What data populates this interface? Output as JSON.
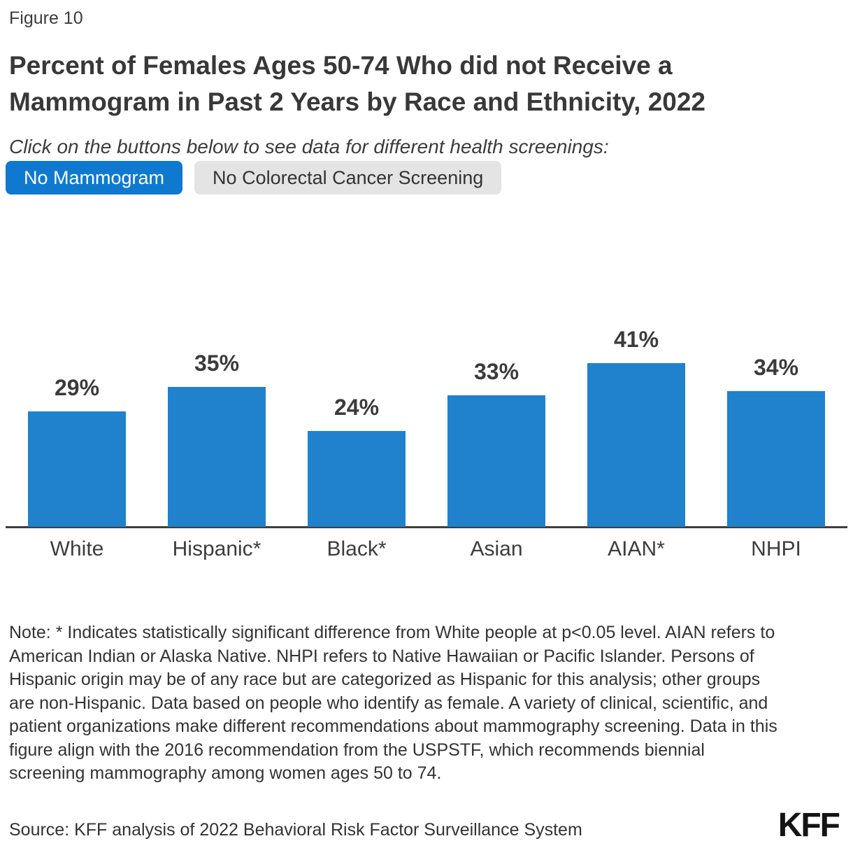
{
  "figure_label": "Figure 10",
  "header": {
    "title": "Percent of Females Ages 50-74 Who did not Receive a Mammogram in Past 2 Years by Race and Ethnicity, 2022",
    "subtitle": "Click on the buttons below to see data for different health screenings:"
  },
  "buttons": [
    {
      "label": "No Mammogram",
      "active": true
    },
    {
      "label": "No Colorectal Cancer Screening",
      "active": false
    }
  ],
  "chart_data": {
    "type": "bar",
    "title": "Percent of Females Ages 50-74 Who did not Receive a Mammogram in Past 2 Years by Race and Ethnicity, 2022",
    "categories": [
      "White",
      "Hispanic*",
      "Black*",
      "Asian",
      "AIAN*",
      "NHPI"
    ],
    "values": [
      29,
      35,
      24,
      33,
      41,
      34
    ],
    "value_labels": [
      "29%",
      "35%",
      "24%",
      "33%",
      "41%",
      "34%"
    ],
    "xlabel": "",
    "ylabel": "",
    "ylim": [
      0,
      45
    ],
    "y_axis_visible": false,
    "gridlines": false,
    "legend": "none",
    "bar_color": "#2081cd"
  },
  "note": "Note: * Indicates statistically significant difference from White people at p<0.05 level. AIAN refers to American Indian or Alaska Native. NHPI refers to Native Hawaiian or Pacific Islander. Persons of Hispanic origin may be of any race but are categorized as Hispanic for this analysis; other groups are non-Hispanic. Data based on people who identify as female. A variety of clinical, scientific, and patient organizations make different recommendations about mammography screening. Data in this figure align with the 2016 recommendation from the USPSTF, which recommends biennial screening mammography among women ages 50 to 74.",
  "source": "Source: KFF analysis of 2022 Behavioral Risk Factor Surveillance System",
  "logo": "KFF",
  "colors": {
    "bar_blue": "#2081cd",
    "active_button_blue": "#0f79d0",
    "inactive_button_gray": "#e4e4e4",
    "axis": "#3f3f3f",
    "text_dark": "#333333"
  }
}
